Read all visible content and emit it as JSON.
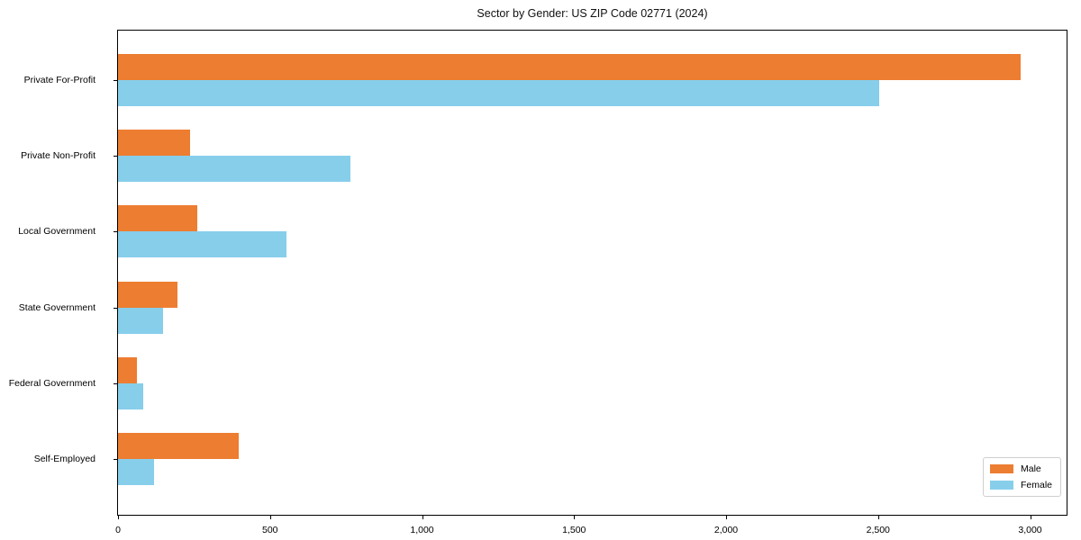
{
  "chart_data": {
    "type": "bar",
    "orientation": "horizontal",
    "title": "Sector by Gender: US ZIP Code 02771 (2024)",
    "categories": [
      "Private For-Profit",
      "Private Non-Profit",
      "Local Government",
      "State Government",
      "Federal Government",
      "Self-Employed"
    ],
    "series": [
      {
        "name": "Male",
        "color": "#ED7D31",
        "values": [
          2970,
          237,
          261,
          196,
          62,
          398
        ]
      },
      {
        "name": "Female",
        "color": "#87CEEB",
        "values": [
          2505,
          765,
          554,
          148,
          82,
          118
        ]
      }
    ],
    "xlabel": "",
    "ylabel": "",
    "xlim": [
      0,
      3120
    ],
    "xticks": [
      0,
      500,
      1000,
      1500,
      2000,
      2500,
      3000
    ],
    "xtick_labels": [
      "0",
      "500",
      "1,000",
      "1,500",
      "2,000",
      "2,500",
      "3,000"
    ],
    "grid": false,
    "legend_position": "lower right",
    "spine_color": "#000000",
    "background": "#ffffff"
  }
}
